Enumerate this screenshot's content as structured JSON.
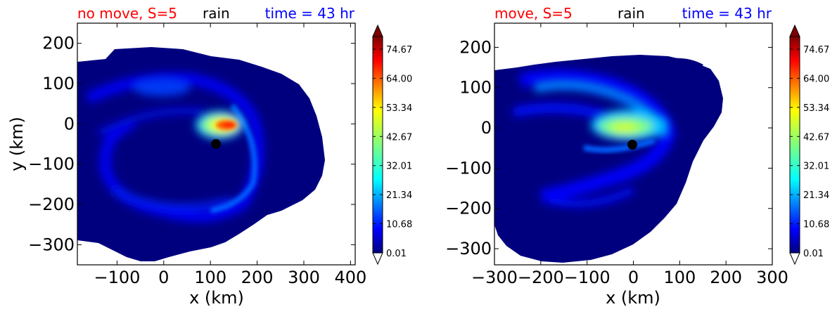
{
  "chart_data": [
    {
      "type": "contour",
      "title_parts": [
        {
          "text": "no move, S=5",
          "color": "#ff0000"
        },
        {
          "text": "rain",
          "color": "#000000"
        },
        {
          "text": "time = 43 hr",
          "color": "#0000ff"
        }
      ],
      "xlabel": "x (km)",
      "ylabel": "y (km)",
      "xlim": [
        -185,
        410
      ],
      "ylim": [
        -350,
        250
      ],
      "xticks": [
        -100,
        0,
        100,
        200,
        300,
        400
      ],
      "yticks": [
        200,
        100,
        0,
        -100,
        -200,
        -300
      ],
      "colorbar": {
        "ticks": [
          "74.67",
          "64.00",
          "53.34",
          "42.67",
          "32.01",
          "21.34",
          "10.68",
          "0.01"
        ],
        "extend": "both"
      },
      "center_marker": {
        "x": 108,
        "y": -48
      }
    },
    {
      "type": "contour",
      "title_parts": [
        {
          "text": "move, S=5",
          "color": "#ff0000"
        },
        {
          "text": "rain",
          "color": "#000000"
        },
        {
          "text": "time = 43 hr",
          "color": "#0000ff"
        }
      ],
      "xlabel": "x (km)",
      "ylabel": "",
      "xlim": [
        -300,
        300
      ],
      "ylim": [
        -340,
        260
      ],
      "xticks": [
        -300,
        -200,
        -100,
        0,
        100,
        200,
        300
      ],
      "yticks": [
        200,
        100,
        0,
        -100,
        -200,
        -300
      ],
      "colorbar": {
        "ticks": [
          "74.67",
          "64.00",
          "53.34",
          "42.67",
          "32.01",
          "21.34",
          "10.68",
          "0.01"
        ],
        "extend": "both"
      },
      "center_marker": {
        "x": 0,
        "y": -40
      }
    }
  ]
}
